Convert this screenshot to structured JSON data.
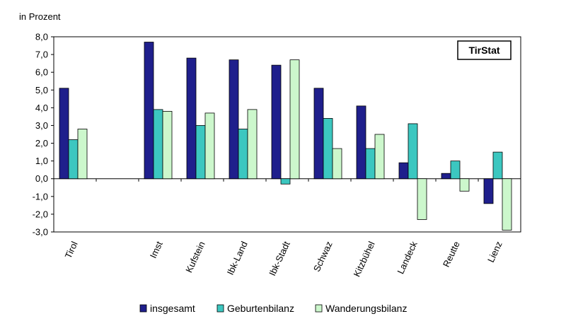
{
  "chart_data": {
    "type": "bar",
    "ylabel": "in Prozent",
    "brand": "TirStat",
    "ylim": [
      -3.0,
      8.0
    ],
    "yticks": [
      "8,0",
      "7,0",
      "6,0",
      "5,0",
      "4,0",
      "3,0",
      "2,0",
      "1,0",
      "0,0",
      "-1,0",
      "-2,0",
      "-3,0"
    ],
    "categories": [
      "Tirol",
      "",
      "Imst",
      "Kufstein",
      "Ibk-Land",
      "Ibk-Stadt",
      "Schwaz",
      "Kitzbühel",
      "Landeck",
      "Reutte",
      "Lienz"
    ],
    "series": [
      {
        "name": "insgesamt",
        "color": "#1f1f8c",
        "values": [
          5.1,
          null,
          7.7,
          6.8,
          6.7,
          6.4,
          5.1,
          4.1,
          0.9,
          0.3,
          -1.4
        ]
      },
      {
        "name": "Geburtenbilanz",
        "color": "#3cc7c0",
        "values": [
          2.2,
          null,
          3.9,
          3.0,
          2.8,
          -0.3,
          3.4,
          1.7,
          3.1,
          1.0,
          1.5
        ]
      },
      {
        "name": "Wanderungsbilanz",
        "color": "#ccf7cc",
        "values": [
          2.8,
          null,
          3.8,
          3.7,
          3.9,
          6.7,
          1.7,
          2.5,
          -2.3,
          -0.7,
          -2.9
        ]
      }
    ],
    "legend_position": "bottom",
    "grid": false
  }
}
